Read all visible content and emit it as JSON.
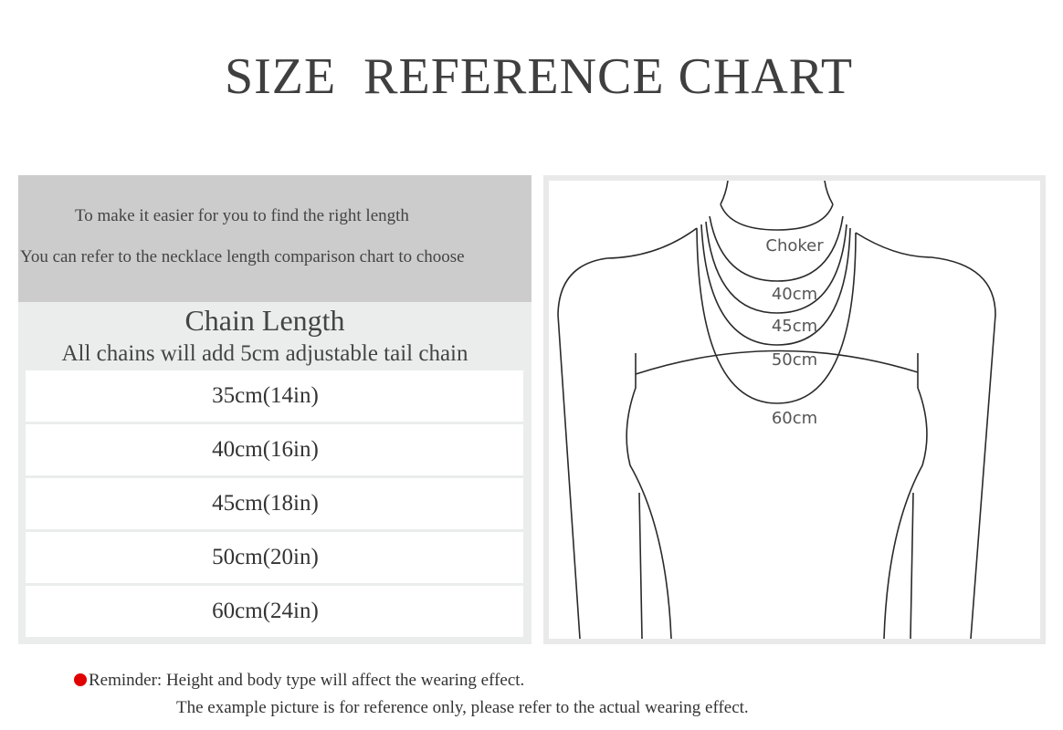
{
  "title": "SIZE  REFERENCE CHART",
  "intro": {
    "line1": "To make it easier for you to find the right length",
    "line2": "You can refer to the necklace length comparison chart to choose"
  },
  "chain": {
    "title": "Chain Length",
    "subtitle": "All chains will add 5cm adjustable tail chain",
    "sizes": [
      "35cm(14in)",
      "40cm(16in)",
      "45cm(18in)",
      "50cm(20in)",
      "60cm(24in)"
    ]
  },
  "diagram": {
    "labels": {
      "choker": "Choker",
      "l40": "40cm",
      "l45": "45cm",
      "l50": "50cm",
      "l60": "60cm"
    }
  },
  "reminder": {
    "line1": "Reminder: Height and body type will affect the wearing effect.",
    "line2": "The example picture is for reference only, please refer to the actual wearing effect.",
    "dot_color": "#e00000"
  }
}
